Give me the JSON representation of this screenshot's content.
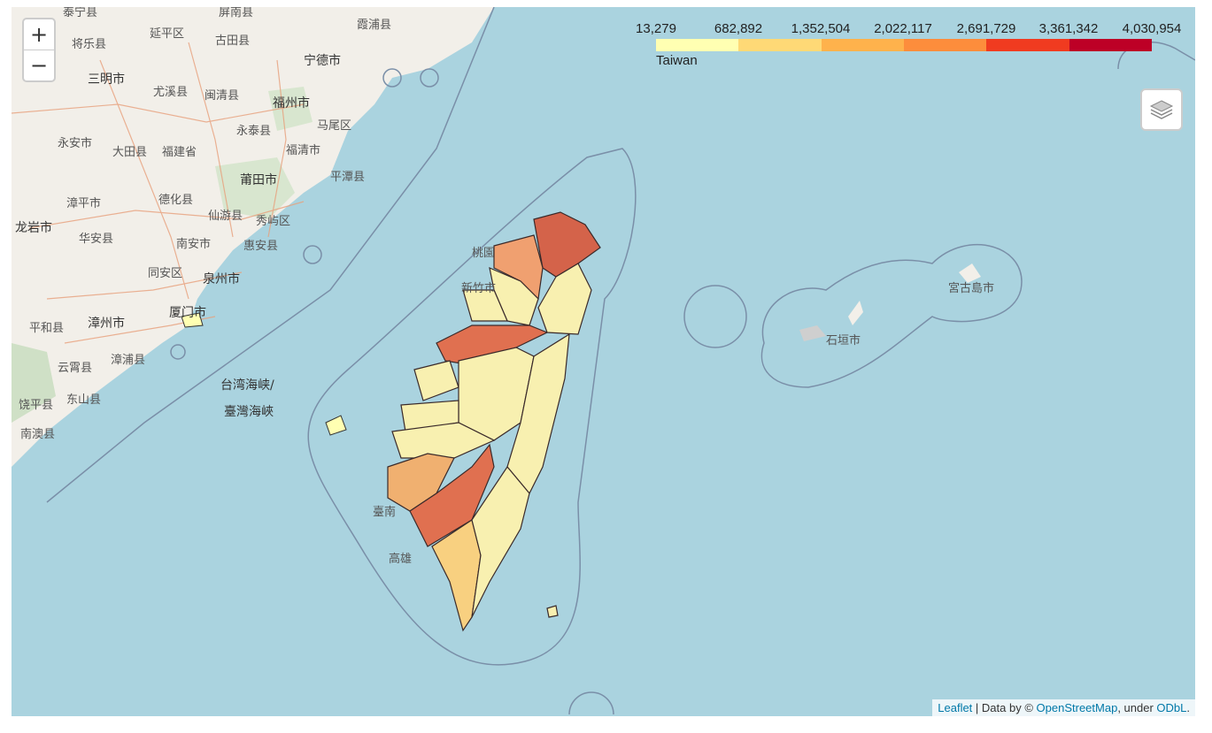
{
  "map": {
    "zoom_in": "+",
    "zoom_out": "−",
    "layers_icon": "layers-icon",
    "legend": {
      "ticks": [
        "13,279",
        "682,892",
        "1,352,504",
        "2,022,117",
        "2,691,729",
        "3,361,342",
        "4,030,954"
      ],
      "colors": [
        "#ffffb2",
        "#fed976",
        "#feb24c",
        "#fd8d3c",
        "#f03b20",
        "#bd0026"
      ],
      "caption": "Taiwan"
    },
    "attribution": {
      "leaflet": "Leaflet",
      "sep": " | Data by © ",
      "osm": "OpenStreetMap",
      "under": ", under ",
      "odbl": "ODbL",
      "end": "."
    },
    "basemap_labels": {
      "fujian": [
        "宁德市",
        "福州市",
        "马尾区",
        "福清市",
        "平潭县",
        "莆田市",
        "泉州市",
        "厦门市",
        "漳州市",
        "龙岩市",
        "三明市",
        "永安市",
        "大田县",
        "尤溪县",
        "闽清县",
        "永泰县",
        "德化县",
        "仙游县",
        "秀屿区",
        "南安市",
        "惠安县",
        "同安区",
        "华安县",
        "漳平市",
        "平和县",
        "漳浦县",
        "云霄县",
        "东山县",
        "饶平县",
        "南澳县",
        "古田县",
        "屏南县",
        "霞浦县",
        "将乐县",
        "延平区",
        "泰宁县",
        "福建省"
      ],
      "strait": [
        "台湾海峡/",
        "臺灣海峽"
      ],
      "taiwan": [
        "桃園",
        "新竹市",
        "臺南",
        "高雄"
      ],
      "ryukyu": [
        "宮古島市",
        "石垣市"
      ]
    }
  }
}
